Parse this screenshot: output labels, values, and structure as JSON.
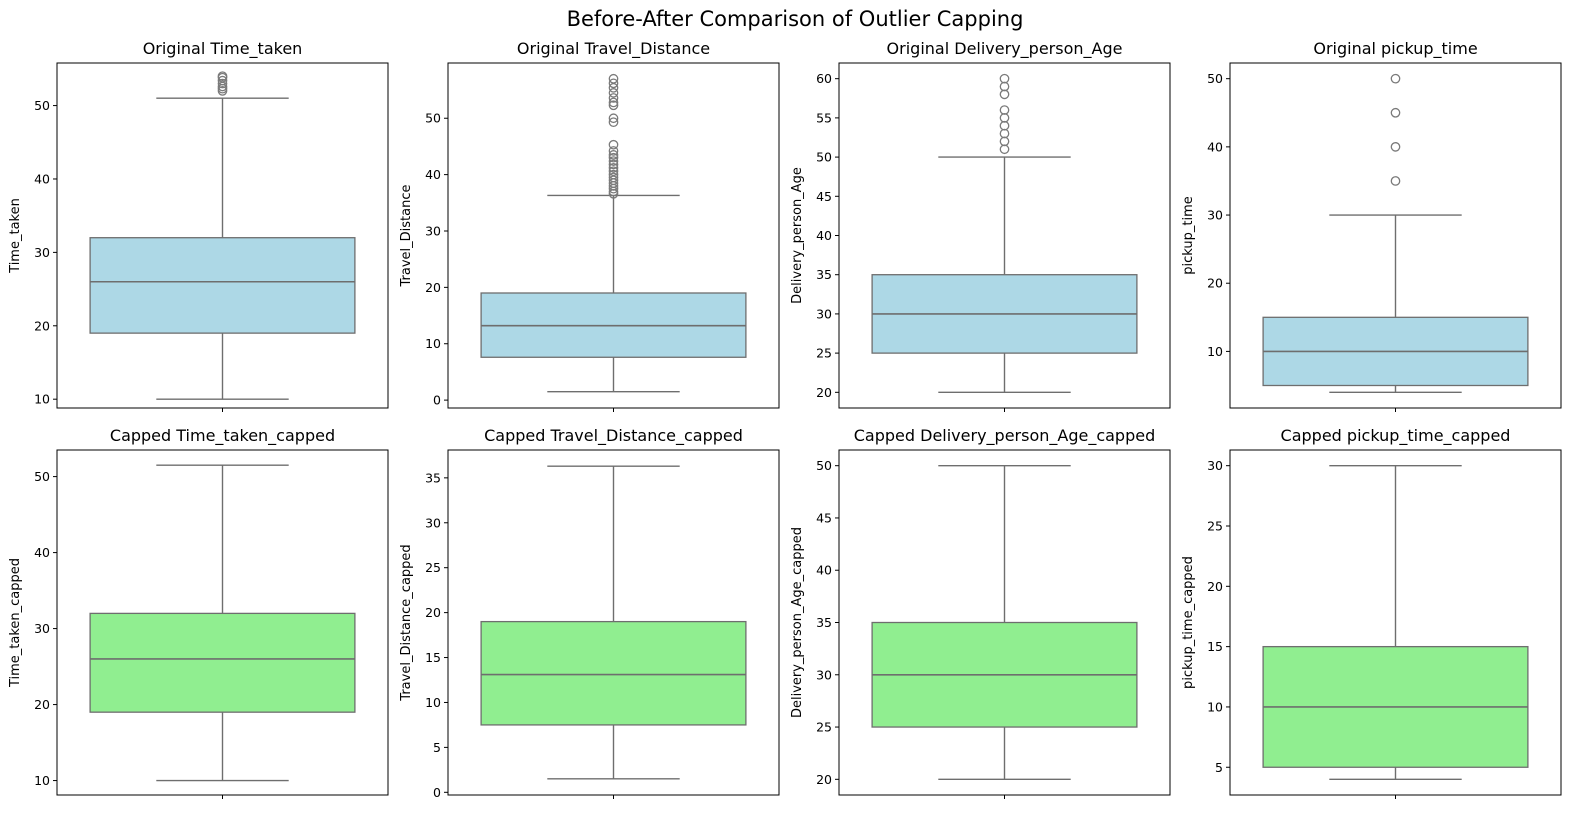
{
  "figure": {
    "title": "Before-After Comparison of Outlier Capping"
  },
  "colors": {
    "original_box": "#add8e6",
    "capped_box": "#90ee90",
    "line": "#6e6e6e",
    "outlier_edge": "#7a7a7a",
    "axes": "#000000"
  },
  "chart_data": [
    {
      "type": "box",
      "title": "Original Time_taken",
      "ylabel": "Time_taken",
      "xlabel": "",
      "ylim": [
        8.8,
        55.8
      ],
      "yticks": [
        10,
        20,
        30,
        40,
        50
      ],
      "box": {
        "whisker_low": 10,
        "q1": 19,
        "median": 26,
        "q3": 32,
        "whisker_high": 51
      },
      "outliers": [
        52,
        52.3,
        52.6,
        53,
        53.4,
        53.8,
        54
      ],
      "fill": "original"
    },
    {
      "type": "box",
      "title": "Original Travel_Distance",
      "ylabel": "Travel_Distance",
      "xlabel": "",
      "ylim": [
        -1.4,
        59.8
      ],
      "yticks": [
        0,
        10,
        20,
        30,
        40,
        50
      ],
      "box": {
        "whisker_low": 1.5,
        "q1": 7.6,
        "median": 13.2,
        "q3": 19,
        "whisker_high": 36.3
      },
      "outliers": [
        36.6,
        37,
        37.5,
        38,
        38.5,
        39,
        39.5,
        40,
        40.6,
        41.2,
        41.8,
        42.4,
        43,
        43.5,
        44.2,
        45.3,
        49.3,
        50,
        52.3,
        52.8,
        53.6,
        54.5,
        55.4,
        56.2,
        57
      ],
      "fill": "original"
    },
    {
      "type": "box",
      "title": "Original Delivery_person_Age",
      "ylabel": "Delivery_person_Age",
      "xlabel": "",
      "ylim": [
        18.0,
        62.0
      ],
      "yticks": [
        20,
        25,
        30,
        35,
        40,
        45,
        50,
        55,
        60
      ],
      "box": {
        "whisker_low": 20,
        "q1": 25,
        "median": 30,
        "q3": 35,
        "whisker_high": 50
      },
      "outliers": [
        51,
        52,
        53,
        54,
        55,
        56,
        58,
        59,
        60
      ],
      "fill": "original"
    },
    {
      "type": "box",
      "title": "Original pickup_time",
      "ylabel": "pickup_time",
      "xlabel": "",
      "ylim": [
        1.7,
        52.3
      ],
      "yticks": [
        10,
        20,
        30,
        40,
        50
      ],
      "box": {
        "whisker_low": 4,
        "q1": 5,
        "median": 10,
        "q3": 15,
        "whisker_high": 30
      },
      "outliers": [
        35,
        40,
        45,
        50
      ],
      "fill": "original"
    },
    {
      "type": "box",
      "title": "Capped Time_taken_capped",
      "ylabel": "Time_taken_capped",
      "xlabel": "",
      "ylim": [
        8.1,
        53.5
      ],
      "yticks": [
        10,
        20,
        30,
        40,
        50
      ],
      "box": {
        "whisker_low": 10,
        "q1": 19,
        "median": 26,
        "q3": 32,
        "whisker_high": 51.5
      },
      "outliers": [],
      "fill": "capped"
    },
    {
      "type": "box",
      "title": "Capped Travel_Distance_capped",
      "ylabel": "Travel_Distance_capped",
      "xlabel": "",
      "ylim": [
        -0.3,
        38.1
      ],
      "yticks": [
        0,
        5,
        10,
        15,
        20,
        25,
        30,
        35
      ],
      "box": {
        "whisker_low": 1.5,
        "q1": 7.5,
        "median": 13.1,
        "q3": 19,
        "whisker_high": 36.3
      },
      "outliers": [],
      "fill": "capped"
    },
    {
      "type": "box",
      "title": "Capped Delivery_person_Age_capped",
      "ylabel": "Delivery_person_Age_capped",
      "xlabel": "",
      "ylim": [
        18.5,
        51.5
      ],
      "yticks": [
        20,
        25,
        30,
        35,
        40,
        45,
        50
      ],
      "box": {
        "whisker_low": 20,
        "q1": 25,
        "median": 30,
        "q3": 35,
        "whisker_high": 50
      },
      "outliers": [],
      "fill": "capped"
    },
    {
      "type": "box",
      "title": "Capped pickup_time_capped",
      "ylabel": "pickup_time_capped",
      "xlabel": "",
      "ylim": [
        2.7,
        31.3
      ],
      "yticks": [
        5,
        10,
        15,
        20,
        25,
        30
      ],
      "box": {
        "whisker_low": 4,
        "q1": 5,
        "median": 10,
        "q3": 15,
        "whisker_high": 30
      },
      "outliers": [],
      "fill": "capped"
    }
  ]
}
